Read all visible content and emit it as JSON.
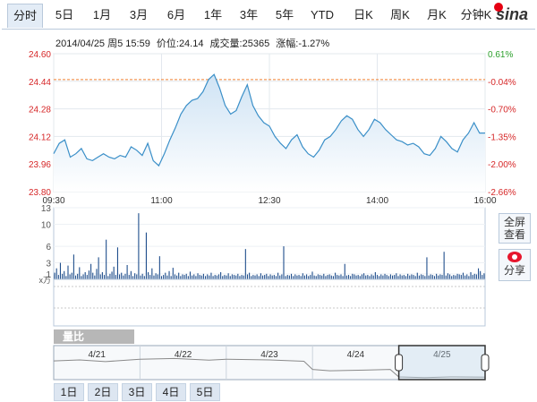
{
  "tabs": [
    "分时",
    "5日",
    "1月",
    "3月",
    "6月",
    "1年",
    "3年",
    "5年",
    "YTD",
    "日K",
    "周K",
    "月K",
    "分钟K"
  ],
  "logo_text": "sina",
  "info": {
    "datetime": "2014/04/25 周5 15:59",
    "price_label": "价位:",
    "price": "24.14",
    "volume_label": "成交量:",
    "volume": "25365",
    "change_label": "涨幅:",
    "change": "-1.27%"
  },
  "side_buttons": {
    "fullscreen": "全屏查看",
    "share": "分享"
  },
  "volume_bar_label": "量比",
  "range_bottom_tabs": [
    "1日",
    "2日",
    "3日",
    "4日",
    "5日"
  ],
  "navigator_dates": [
    "4/21",
    "4/22",
    "4/23",
    "4/24",
    "4/25"
  ],
  "colors": {
    "line": "#3a8fc8",
    "fill_top": "#cfe3f4",
    "ref_line": "#f08030",
    "up": "#d62728",
    "down": "#2ca02c",
    "volume": "#1f4e8c"
  },
  "chart_data": [
    {
      "type": "line",
      "title": "",
      "x_ticks": [
        "09:30",
        "11:00",
        "12:30",
        "14:00",
        "16:00"
      ],
      "y_left_ticks": [
        24.6,
        24.44,
        24.28,
        24.12,
        23.96,
        23.8
      ],
      "y_right_ticks": [
        "0.61%",
        "-0.04%",
        "-0.70%",
        "-1.35%",
        "-2.00%",
        "-2.66%"
      ],
      "ylim": [
        23.8,
        24.6
      ],
      "reference_price": 24.45,
      "minutes_total": 390,
      "series": [
        {
          "points": [
            [
              0,
              24.02
            ],
            [
              5,
              24.08
            ],
            [
              10,
              24.1
            ],
            [
              15,
              24.0
            ],
            [
              20,
              24.02
            ],
            [
              25,
              24.05
            ],
            [
              30,
              23.99
            ],
            [
              35,
              23.98
            ],
            [
              40,
              24.0
            ],
            [
              45,
              24.02
            ],
            [
              50,
              24.0
            ],
            [
              55,
              23.99
            ],
            [
              60,
              24.01
            ],
            [
              65,
              24.0
            ],
            [
              70,
              24.06
            ],
            [
              75,
              24.04
            ],
            [
              80,
              24.01
            ],
            [
              85,
              24.08
            ],
            [
              90,
              23.98
            ],
            [
              95,
              23.95
            ],
            [
              100,
              24.02
            ],
            [
              105,
              24.1
            ],
            [
              110,
              24.17
            ],
            [
              115,
              24.25
            ],
            [
              120,
              24.3
            ],
            [
              125,
              24.33
            ],
            [
              130,
              24.34
            ],
            [
              135,
              24.38
            ],
            [
              140,
              24.45
            ],
            [
              145,
              24.48
            ],
            [
              150,
              24.4
            ],
            [
              155,
              24.3
            ],
            [
              160,
              24.25
            ],
            [
              165,
              24.27
            ],
            [
              170,
              24.35
            ],
            [
              175,
              24.42
            ],
            [
              180,
              24.3
            ],
            [
              185,
              24.24
            ],
            [
              190,
              24.2
            ],
            [
              195,
              24.18
            ],
            [
              200,
              24.12
            ],
            [
              205,
              24.08
            ],
            [
              210,
              24.05
            ],
            [
              215,
              24.1
            ],
            [
              220,
              24.13
            ],
            [
              225,
              24.06
            ],
            [
              230,
              24.02
            ],
            [
              235,
              24.0
            ],
            [
              240,
              24.04
            ],
            [
              245,
              24.1
            ],
            [
              250,
              24.12
            ],
            [
              255,
              24.16
            ],
            [
              260,
              24.21
            ],
            [
              265,
              24.24
            ],
            [
              270,
              24.22
            ],
            [
              275,
              24.16
            ],
            [
              280,
              24.12
            ],
            [
              285,
              24.16
            ],
            [
              290,
              24.22
            ],
            [
              295,
              24.2
            ],
            [
              300,
              24.16
            ],
            [
              305,
              24.13
            ],
            [
              310,
              24.1
            ],
            [
              315,
              24.09
            ],
            [
              320,
              24.07
            ],
            [
              325,
              24.08
            ],
            [
              330,
              24.06
            ],
            [
              335,
              24.02
            ],
            [
              340,
              24.01
            ],
            [
              345,
              24.05
            ],
            [
              350,
              24.12
            ],
            [
              355,
              24.09
            ],
            [
              360,
              24.05
            ],
            [
              365,
              24.03
            ],
            [
              370,
              24.1
            ],
            [
              375,
              24.14
            ],
            [
              380,
              24.2
            ],
            [
              385,
              24.14
            ],
            [
              390,
              24.14
            ]
          ]
        }
      ]
    },
    {
      "type": "bar",
      "title": "",
      "y_ticks": [
        13,
        10,
        6,
        3,
        1
      ],
      "ylabel": "x万",
      "ylim": [
        0,
        13
      ],
      "values": [
        1.2,
        2.0,
        0.8,
        3.0,
        1.0,
        1.5,
        0.6,
        2.5,
        0.9,
        1.2,
        4.5,
        0.7,
        1.0,
        2.2,
        0.6,
        0.9,
        1.3,
        0.8,
        1.6,
        2.8,
        1.2,
        0.7,
        1.9,
        4.0,
        0.9,
        1.3,
        0.8,
        7.2,
        0.6,
        1.0,
        1.4,
        2.3,
        0.8,
        5.8,
        0.9,
        1.2,
        0.7,
        1.0,
        2.6,
        0.8,
        1.5,
        0.6,
        1.1,
        0.9,
        12.0,
        0.7,
        1.0,
        0.6,
        8.5,
        1.3,
        0.8,
        2.0,
        0.7,
        1.1,
        0.9,
        4.2,
        0.6,
        0.8,
        1.2,
        0.7,
        1.5,
        0.6,
        2.1,
        0.9,
        0.7,
        1.2,
        0.6,
        0.9,
        0.8,
        1.0,
        0.6,
        1.4,
        0.7,
        0.9,
        0.6,
        1.1,
        0.8,
        0.7,
        1.0,
        0.6,
        0.9,
        0.7,
        1.2,
        0.6,
        0.8,
        0.7,
        0.9,
        1.3,
        0.6,
        0.8,
        0.7,
        1.1,
        0.6,
        0.9,
        0.8,
        0.7,
        1.0,
        0.6,
        0.8,
        0.7,
        5.5,
        0.9,
        1.2,
        0.6,
        0.8,
        0.7,
        0.9,
        0.6,
        1.1,
        0.7,
        0.8,
        1.0,
        0.6,
        0.9,
        0.7,
        0.8,
        0.6,
        1.2,
        0.7,
        0.9,
        6.0,
        0.6,
        0.8,
        0.7,
        1.0,
        0.6,
        0.9,
        0.7,
        0.8,
        0.6,
        1.1,
        0.7,
        0.9,
        0.6,
        0.8,
        1.4,
        0.7,
        0.6,
        0.9,
        0.8,
        0.7,
        1.0,
        0.6,
        0.8,
        0.9,
        0.7,
        0.6,
        1.2,
        0.8,
        0.7,
        0.9,
        0.6,
        2.8,
        0.7,
        0.8,
        0.6,
        1.0,
        0.9,
        0.7,
        0.8,
        0.6,
        0.9,
        1.1,
        0.7,
        0.8,
        0.6,
        0.9,
        0.7,
        1.3,
        0.8,
        0.6,
        0.9,
        0.7,
        1.0,
        0.8,
        0.6,
        0.9,
        0.7,
        0.8,
        1.1,
        0.6,
        0.9,
        0.7,
        0.8,
        0.6,
        1.0,
        0.7,
        0.9,
        0.8,
        0.6,
        1.2,
        0.7,
        0.9,
        0.8,
        0.6,
        4.0,
        0.7,
        0.9,
        0.8,
        0.6,
        1.0,
        0.7,
        0.9,
        0.8,
        5.0,
        0.7,
        1.1,
        0.9,
        0.6,
        0.8,
        0.7,
        1.0,
        0.9,
        0.8,
        1.2,
        0.7,
        0.9,
        0.6,
        1.3,
        0.8,
        1.0,
        0.9,
        2.0,
        1.5,
        0.8,
        1.1
      ]
    }
  ]
}
